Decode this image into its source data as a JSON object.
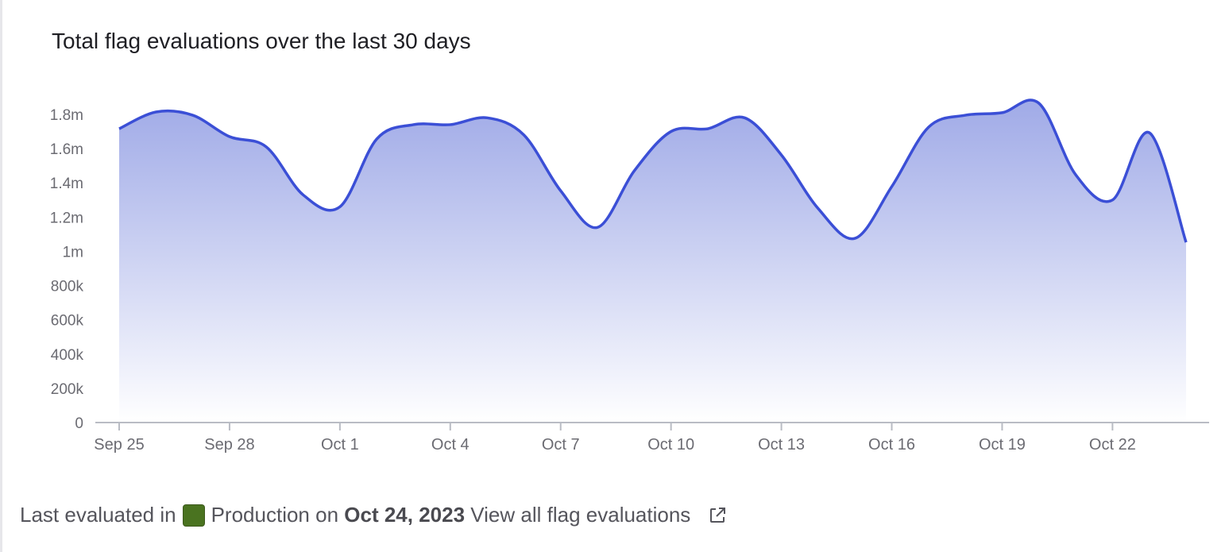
{
  "title": "Total flag evaluations over the last 30 days",
  "colors": {
    "line": "#3b4fd6",
    "fill_top": "#9ba6e6",
    "axis": "#b9bcc4",
    "environment": "#4a7320"
  },
  "footer": {
    "prefix": "Last evaluated in",
    "environment": "Production",
    "on": " on ",
    "date": "Oct 24, 2023",
    "link": " View all flag evaluations",
    "link_icon": "external-link-icon"
  },
  "chart_data": {
    "type": "area",
    "title": "Total flag evaluations over the last 30 days",
    "xlabel": "",
    "ylabel": "",
    "x": [
      "Sep 25",
      "Sep 26",
      "Sep 27",
      "Sep 28",
      "Sep 29",
      "Sep 30",
      "Oct 1",
      "Oct 2",
      "Oct 3",
      "Oct 4",
      "Oct 5",
      "Oct 6",
      "Oct 7",
      "Oct 8",
      "Oct 9",
      "Oct 10",
      "Oct 11",
      "Oct 12",
      "Oct 13",
      "Oct 14",
      "Oct 15",
      "Oct 16",
      "Oct 17",
      "Oct 18",
      "Oct 19",
      "Oct 20",
      "Oct 21",
      "Oct 22",
      "Oct 23",
      "Oct 24"
    ],
    "values": [
      1716000,
      1814000,
      1795000,
      1670000,
      1610000,
      1330000,
      1260000,
      1656000,
      1740000,
      1740000,
      1780000,
      1680000,
      1354000,
      1140000,
      1470000,
      1700000,
      1716000,
      1780000,
      1563000,
      1250000,
      1076000,
      1378000,
      1725000,
      1795000,
      1810000,
      1865000,
      1447000,
      1300000,
      1693000,
      1053000
    ],
    "ylim": [
      0,
      1800000
    ],
    "y_ticks": [
      "0",
      "200k",
      "400k",
      "600k",
      "800k",
      "1m",
      "1.2m",
      "1.4m",
      "1.6m",
      "1.8m"
    ],
    "x_ticks": [
      "Sep 25",
      "Sep 28",
      "Oct 1",
      "Oct 4",
      "Oct 7",
      "Oct 10",
      "Oct 13",
      "Oct 16",
      "Oct 19",
      "Oct 22"
    ],
    "grid": false,
    "legend": "none"
  }
}
